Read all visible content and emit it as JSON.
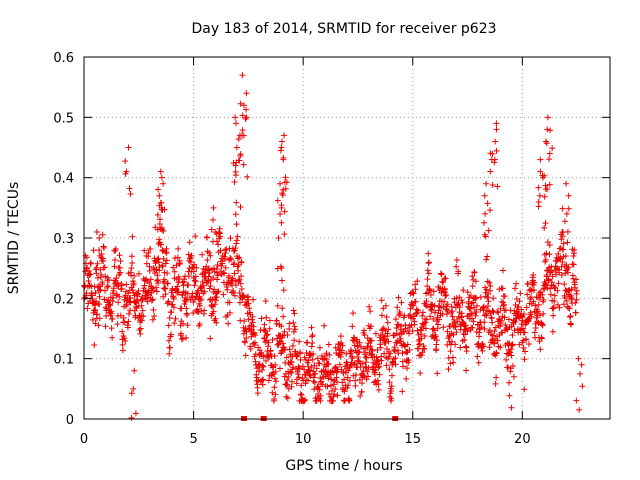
{
  "chart_data": {
    "type": "scatter",
    "title": "Day 183 of 2014, SRMTID for receiver p623",
    "xlabel": "GPS time / hours",
    "ylabel": "SRMTID / TECUs",
    "xlim": [
      0,
      24
    ],
    "ylim": [
      0,
      0.6
    ],
    "xticks": [
      0,
      5,
      10,
      15,
      20
    ],
    "xtick_labels": [
      "0",
      "5",
      "10",
      "15",
      "20"
    ],
    "yticks": [
      0,
      0.1,
      0.2,
      0.3,
      0.4,
      0.5,
      0.6
    ],
    "ytick_labels": [
      "0",
      "0.1",
      "0.2",
      "0.3",
      "0.4",
      "0.5",
      "0.6"
    ],
    "grid": true,
    "marker": "plus",
    "color": "#ee0000",
    "gap_markers_x": [
      7.3,
      8.2,
      14.2
    ],
    "trend": {
      "x": [
        0,
        1,
        2,
        3,
        3.5,
        4,
        5,
        5.8,
        6.5,
        7.2,
        7.5,
        8,
        9,
        10,
        10.5,
        11,
        12,
        13,
        14,
        15,
        16,
        17,
        18,
        19,
        20,
        21,
        21.5,
        22,
        22.5
      ],
      "y": [
        0.2,
        0.22,
        0.19,
        0.22,
        0.27,
        0.2,
        0.22,
        0.22,
        0.24,
        0.24,
        0.14,
        0.1,
        0.12,
        0.08,
        0.07,
        0.07,
        0.09,
        0.1,
        0.11,
        0.16,
        0.18,
        0.16,
        0.18,
        0.15,
        0.16,
        0.2,
        0.25,
        0.24,
        0.2
      ]
    },
    "spread": 0.045,
    "spikes": [
      {
        "x": 0.6,
        "y": [
          0.28,
          0.31,
          0.3
        ]
      },
      {
        "x": 2.0,
        "y": [
          0.45,
          0.41
        ]
      },
      {
        "x": 2.2,
        "y": [
          0.05,
          0.08
        ]
      },
      {
        "x": 3.5,
        "y": [
          0.41,
          0.4,
          0.39,
          0.37,
          0.35
        ]
      },
      {
        "x": 5.9,
        "y": [
          0.33,
          0.35,
          0.31
        ]
      },
      {
        "x": 7.0,
        "y": [
          0.5,
          0.49,
          0.47,
          0.45,
          0.42
        ]
      },
      {
        "x": 7.3,
        "y": [
          0.57,
          0.54,
          0.52,
          0.5,
          0.47
        ]
      },
      {
        "x": 9.1,
        "y": [
          0.47,
          0.46,
          0.45,
          0.43
        ]
      },
      {
        "x": 9.0,
        "y": [
          0.39,
          0.38,
          0.35,
          0.3,
          0.25
        ]
      },
      {
        "x": 18.7,
        "y": [
          0.49,
          0.48,
          0.46,
          0.43
        ]
      },
      {
        "x": 18.4,
        "y": [
          0.39,
          0.37,
          0.34
        ]
      },
      {
        "x": 19.5,
        "y": [
          0.06,
          0.07
        ]
      },
      {
        "x": 21.2,
        "y": [
          0.5,
          0.48,
          0.46,
          0.44
        ]
      },
      {
        "x": 20.9,
        "y": [
          0.43,
          0.41,
          0.4,
          0.37
        ]
      },
      {
        "x": 22.0,
        "y": [
          0.39,
          0.37,
          0.34
        ]
      },
      {
        "x": 22.6,
        "y": [
          0.09,
          0.1
        ]
      }
    ]
  }
}
